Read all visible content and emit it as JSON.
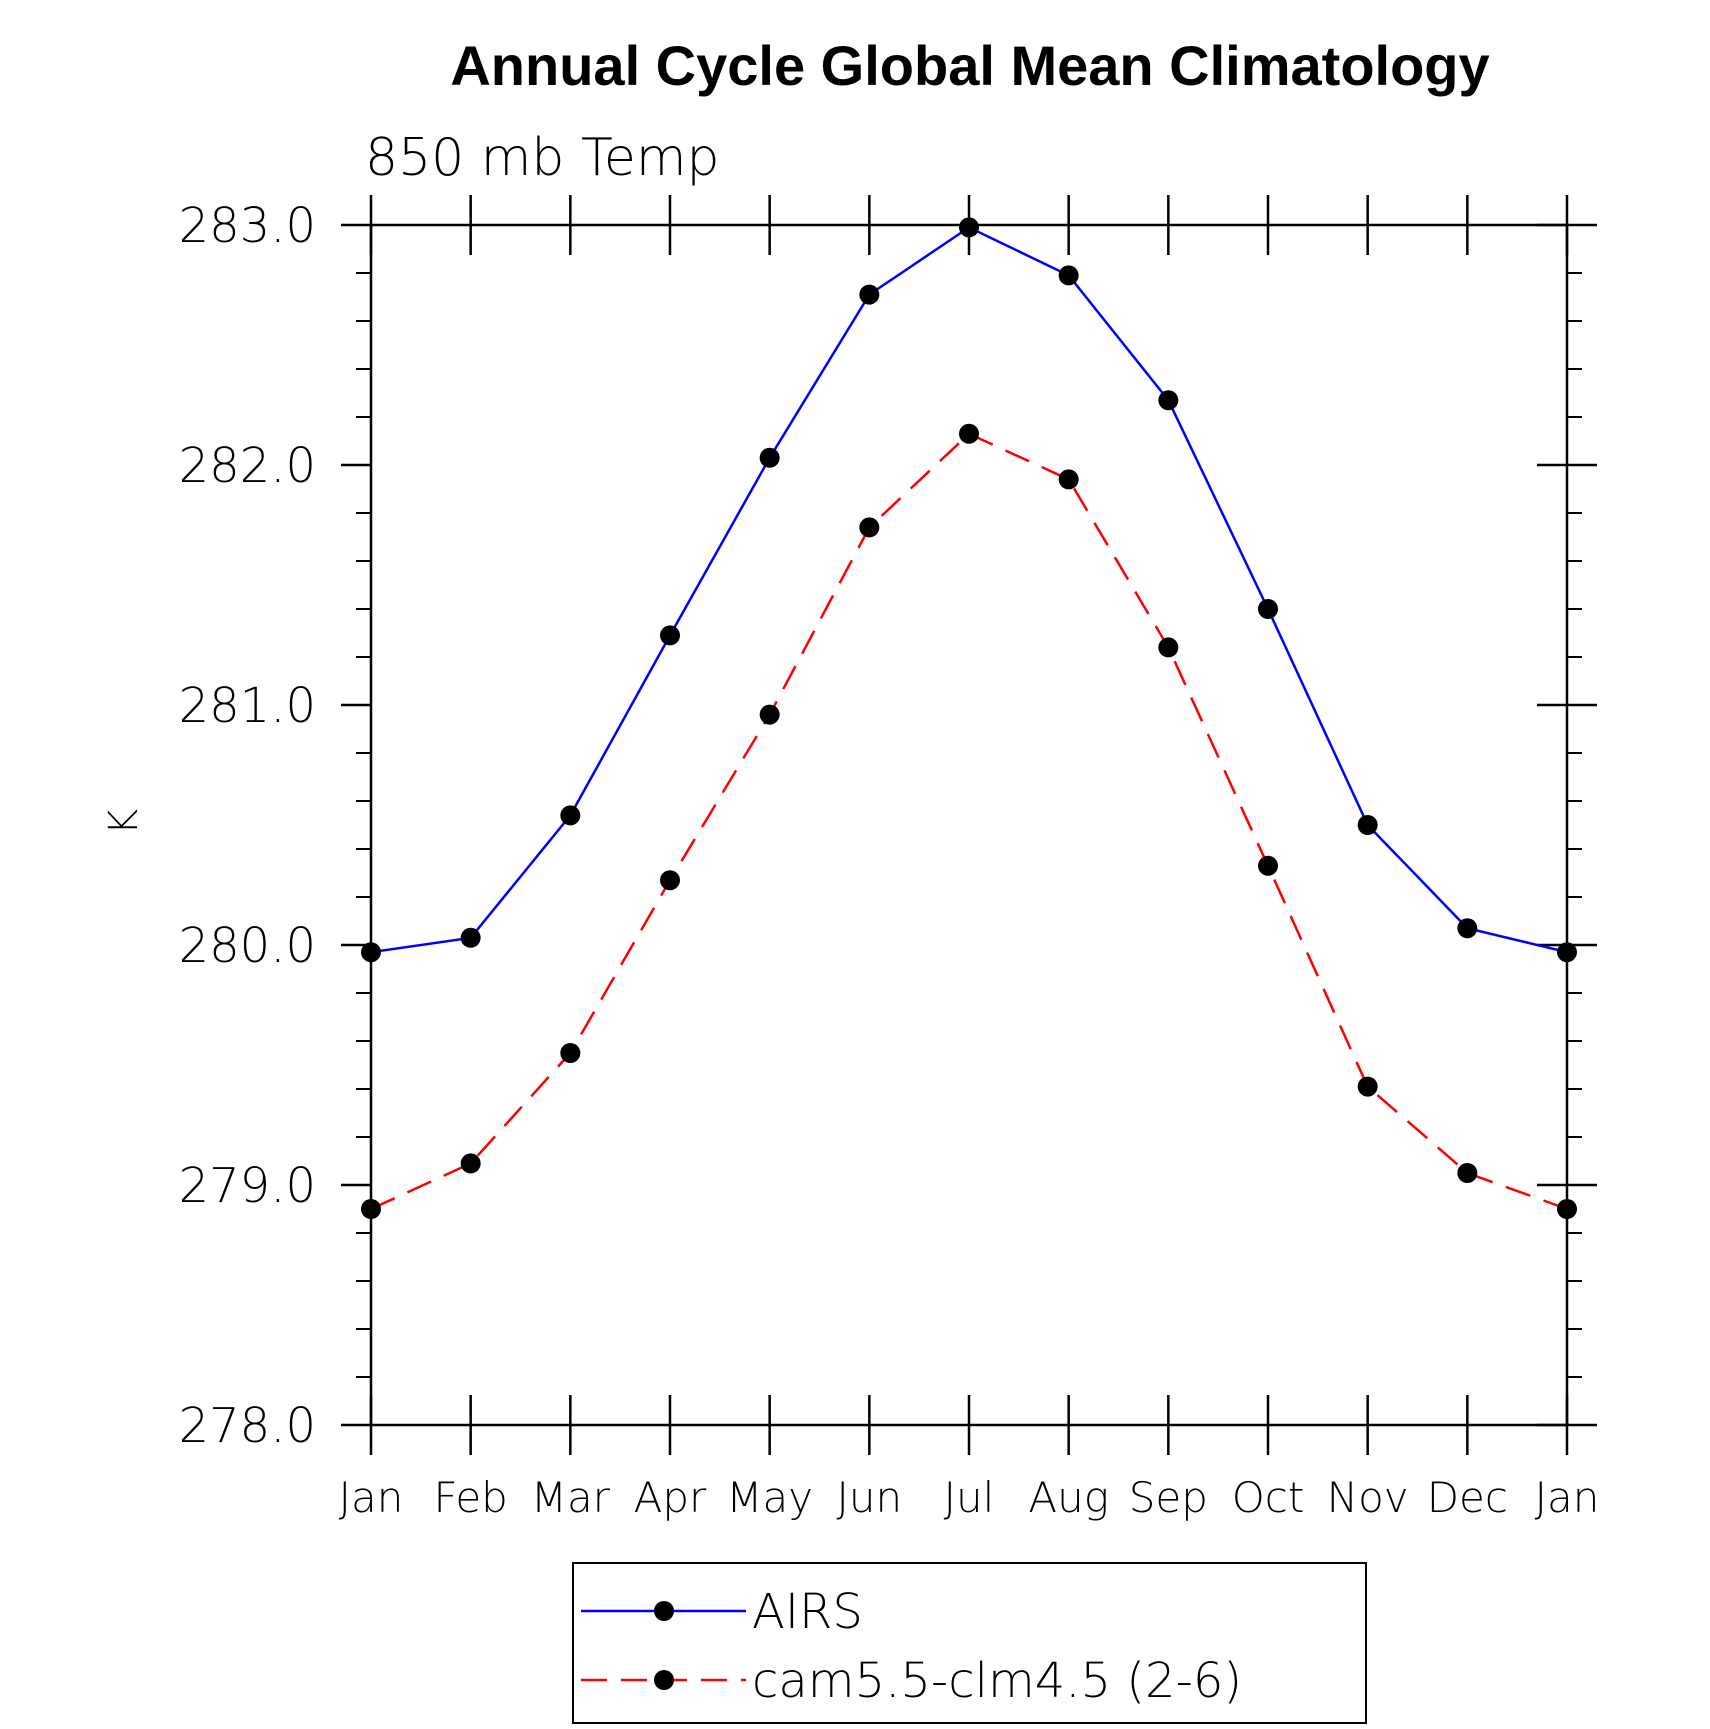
{
  "chart_data": {
    "type": "line",
    "title": "Annual Cycle Global Mean Climatology",
    "subtitle": "850 mb Temp",
    "ylabel": "K",
    "xlabel": "",
    "categories": [
      "Jan",
      "Feb",
      "Mar",
      "Apr",
      "May",
      "Jun",
      "Jul",
      "Aug",
      "Sep",
      "Oct",
      "Nov",
      "Dec",
      "Jan"
    ],
    "ylim": [
      278.0,
      283.0
    ],
    "yticks": [
      "278.0",
      "279.0",
      "280.0",
      "281.0",
      "282.0",
      "283.0"
    ],
    "yticks_values": [
      278.0,
      279.0,
      280.0,
      281.0,
      282.0,
      283.0
    ],
    "y_minor_step": 0.2,
    "grid": false,
    "legend_position": "bottom-center",
    "series": [
      {
        "name": "AIRS",
        "color": "#0000ff",
        "line_style": "solid",
        "marker": "filled-circle",
        "marker_color": "#000000",
        "values": [
          279.97,
          280.03,
          280.54,
          281.29,
          282.03,
          282.71,
          282.99,
          282.79,
          282.27,
          281.4,
          280.5,
          280.07,
          279.97
        ]
      },
      {
        "name": "cam5.5-clm4.5 (2-6)",
        "color": "#ff0000",
        "line_style": "dashed",
        "marker": "filled-circle",
        "marker_color": "#000000",
        "values": [
          278.9,
          279.09,
          279.55,
          280.27,
          280.96,
          281.74,
          282.13,
          281.94,
          281.24,
          280.33,
          279.41,
          279.05,
          278.9
        ]
      }
    ]
  }
}
